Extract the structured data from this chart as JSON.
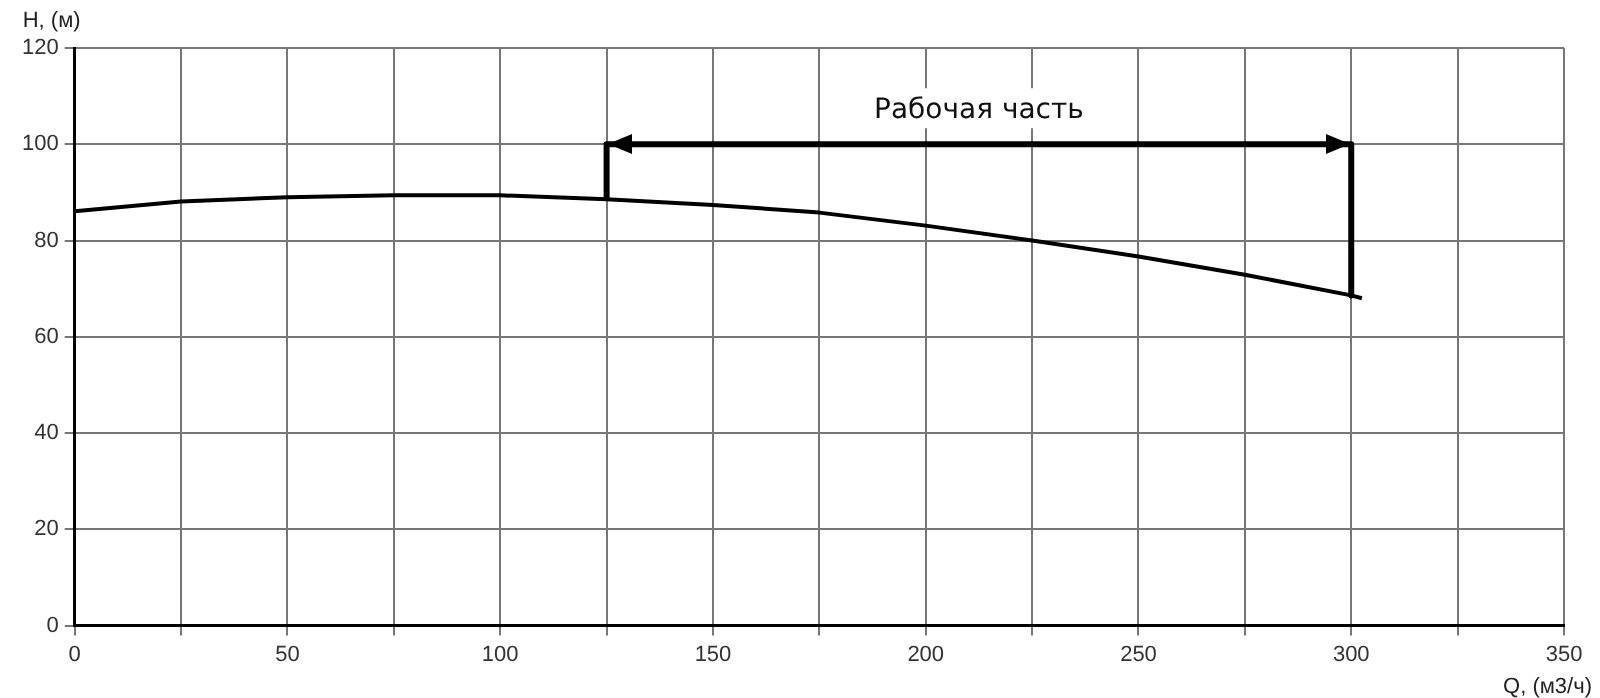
{
  "chart_data": {
    "type": "line",
    "xlabel": "Q, (м3/ч)",
    "ylabel": "H, (м)",
    "series": [
      {
        "color": "#000000",
        "x": [
          0,
          25,
          50,
          75,
          100,
          125,
          150,
          175,
          200,
          225,
          250,
          275,
          300,
          302.5
        ],
        "values": [
          86.1,
          88.1,
          89,
          89.4,
          89.4,
          88.6,
          87.4,
          85.8,
          83.1,
          80,
          76.7,
          72.9,
          68.6,
          68
        ]
      },
      {
        "color": "#000000",
        "x": [
          125,
          125,
          300,
          300
        ],
        "values": [
          88.6,
          100,
          100,
          68.6
        ]
      }
    ],
    "xlim": [
      0,
      350
    ],
    "xticks": [
      0,
      {
        "value": 25,
        "label": null
      },
      50,
      {
        "value": 75,
        "label": null
      },
      100,
      {
        "value": 125,
        "label": null
      },
      150,
      {
        "value": 175,
        "label": null
      },
      200,
      {
        "value": 225,
        "label": null
      },
      250,
      {
        "value": 275,
        "label": null
      },
      300,
      {
        "value": 325,
        "label": null
      },
      350
    ],
    "ylim": [
      0,
      120
    ],
    "yticks": [
      0,
      20,
      40,
      60,
      80,
      100,
      120
    ],
    "grid": true,
    "legend": false,
    "marker": "none",
    "line_style": "solid",
    "annotations": [
      "Рабочая часть"
    ]
  }
}
